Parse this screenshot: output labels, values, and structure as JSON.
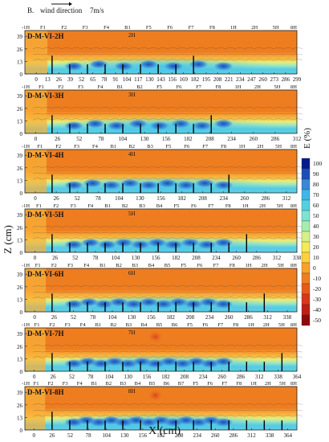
{
  "figure": {
    "header": {
      "prefix": "B.",
      "label": "wind direction",
      "speed": "7m/s"
    },
    "y_axis_label": "Z (cm)",
    "x_axis_label": "X (cm)"
  },
  "colorbar": {
    "title": "E (%)",
    "ticks": [
      "100",
      "90",
      "80",
      "70",
      "60",
      "50",
      "40",
      "30",
      "20",
      "10",
      "0",
      "-10",
      "-20",
      "-30",
      "-40",
      "-50"
    ],
    "colors": [
      "#071a8e",
      "#1a4fb5",
      "#3c86d6",
      "#3fb6e8",
      "#55d0e0",
      "#7ee2d0",
      "#a8ecb0",
      "#d6f08a",
      "#f4ea5a",
      "#fad23a",
      "#f7a228",
      "#f07d22",
      "#e65a1c",
      "#d9361a",
      "#bf1d16",
      "#8c0b0b"
    ]
  },
  "chart_data": [
    {
      "type": "heatmap",
      "title": "D-M-VI-2H",
      "center_label": "2H",
      "markers": [
        "-1H",
        "F1",
        "F2",
        "F3",
        "F4",
        "B1",
        "F5",
        "F6",
        "F7",
        "F8",
        "1H",
        "2H",
        "5H",
        "8H"
      ],
      "xticks": [
        "0",
        "13",
        "26",
        "39",
        "52",
        "65",
        "78",
        "91",
        "104",
        "117",
        "130",
        "143",
        "156",
        "169",
        "182",
        "195",
        "208",
        "221",
        "234",
        "247",
        "260",
        "273",
        "286",
        "299"
      ],
      "yticks": [
        "39",
        "26",
        "13",
        "0"
      ],
      "xlim": [
        -13,
        299
      ],
      "zlim": [
        0,
        45
      ]
    },
    {
      "type": "heatmap",
      "title": "D-M-VI-3H",
      "center_label": "3H",
      "markers": [
        "-1H",
        "F1",
        "F2",
        "F3",
        "F4",
        "B1",
        "B2",
        "F5",
        "F6",
        "F7",
        "F8",
        "1H",
        "2H",
        "5H",
        "8H"
      ],
      "xticks": [
        "0",
        "26",
        "52",
        "78",
        "104",
        "130",
        "156",
        "182",
        "208",
        "234",
        "260",
        "286",
        "312"
      ],
      "yticks": [
        "39",
        "26",
        "13",
        "0"
      ],
      "xlim": [
        -13,
        312
      ],
      "zlim": [
        0,
        45
      ]
    },
    {
      "type": "heatmap",
      "title": "D-M-VI-4H",
      "center_label": "4H",
      "markers": [
        "-1H",
        "F1",
        "F2",
        "F3",
        "F4",
        "B1",
        "B2",
        "B3",
        "F5",
        "F6",
        "F7",
        "F8",
        "1H",
        "2H",
        "5H",
        "8H"
      ],
      "xticks": [
        "0",
        "26",
        "52",
        "78",
        "104",
        "130",
        "156",
        "182",
        "208",
        "234",
        "260",
        "286",
        "312"
      ],
      "yticks": [
        "39",
        "26",
        "13",
        "0"
      ],
      "xlim": [
        -13,
        325
      ],
      "zlim": [
        0,
        45
      ]
    },
    {
      "type": "heatmap",
      "title": "D-M-VI-5H",
      "center_label": "5H",
      "markers": [
        "-1H",
        "F1",
        "F2",
        "F3",
        "F4",
        "B1",
        "B2",
        "B3",
        "B4",
        "F5",
        "F6",
        "F7",
        "F8",
        "1H",
        "2H",
        "5H",
        "8H"
      ],
      "xticks": [
        "0",
        "26",
        "52",
        "78",
        "104",
        "130",
        "156",
        "182",
        "208",
        "234",
        "260",
        "286",
        "312",
        "338"
      ],
      "yticks": [
        "39",
        "26",
        "13",
        "0"
      ],
      "xlim": [
        -13,
        338
      ],
      "zlim": [
        0,
        45
      ]
    },
    {
      "type": "heatmap",
      "title": "D-M-VI-6H",
      "center_label": "6H",
      "markers": [
        "-1H",
        "F1",
        "F2",
        "F3",
        "F4",
        "B1",
        "B2",
        "B3",
        "B4",
        "B5",
        "F5",
        "F6",
        "F7",
        "F8",
        "1H",
        "2H",
        "5H",
        "8H"
      ],
      "xticks": [
        "0",
        "26",
        "52",
        "78",
        "104",
        "130",
        "156",
        "182",
        "208",
        "234",
        "260",
        "286",
        "312",
        "338"
      ],
      "yticks": [
        "39",
        "26",
        "13",
        "0"
      ],
      "xlim": [
        -13,
        351
      ],
      "zlim": [
        0,
        45
      ]
    },
    {
      "type": "heatmap",
      "title": "D-M-VI-7H",
      "center_label": "7H",
      "markers": [
        "-1H",
        "F1",
        "F2",
        "F3",
        "F4",
        "B1",
        "B2",
        "B3",
        "B4",
        "B5",
        "B6",
        "F5",
        "F6",
        "F7",
        "F8",
        "1H",
        "2H",
        "5H",
        "8H"
      ],
      "xticks": [
        "0",
        "26",
        "52",
        "78",
        "104",
        "130",
        "156",
        "182",
        "208",
        "234",
        "260",
        "286",
        "312",
        "338",
        "364"
      ],
      "yticks": [
        "39",
        "26",
        "13",
        "0"
      ],
      "xlim": [
        -13,
        364
      ],
      "zlim": [
        0,
        45
      ]
    },
    {
      "type": "heatmap",
      "title": "D-M-VI-8H",
      "center_label": "8H",
      "markers": [
        "-1H",
        "F1",
        "F2",
        "F3",
        "F4",
        "B1",
        "B2",
        "B3",
        "B4",
        "B5",
        "B6",
        "B7",
        "F5",
        "F6",
        "F7",
        "F8",
        "1H",
        "2H",
        "5H",
        "8H"
      ],
      "xticks": [
        "0",
        "26",
        "52",
        "78",
        "104",
        "130",
        "156",
        "182",
        "208",
        "234",
        "260",
        "286",
        "312",
        "338",
        "364"
      ],
      "yticks": [
        "39",
        "26",
        "13",
        "0"
      ],
      "xlim": [
        -13,
        377
      ],
      "zlim": [
        0,
        45
      ]
    }
  ]
}
